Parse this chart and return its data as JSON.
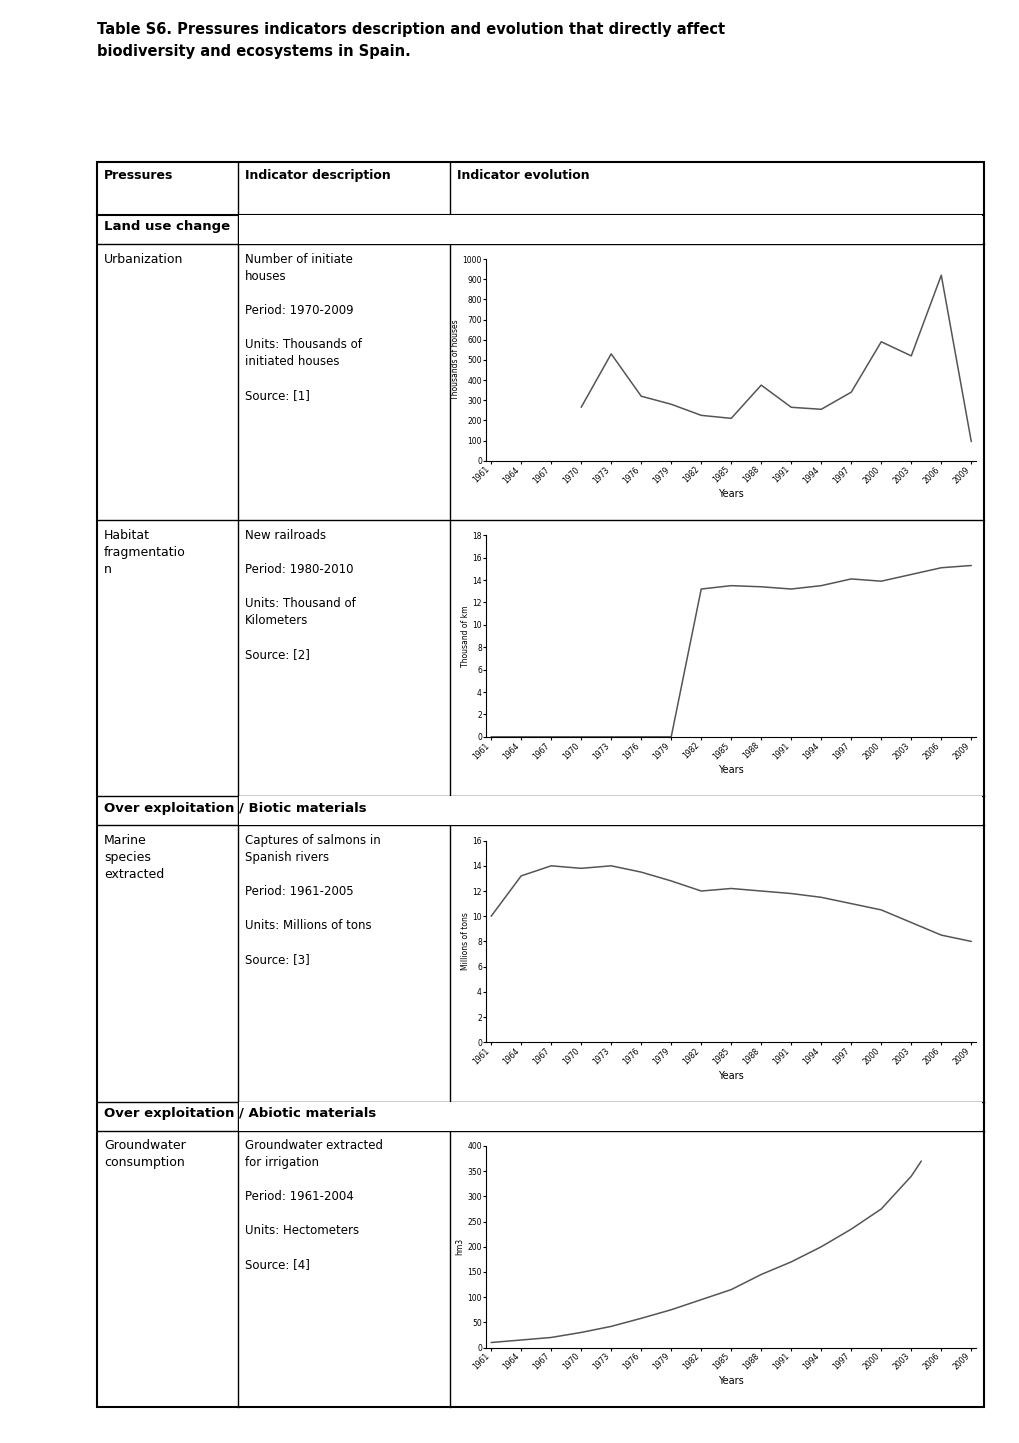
{
  "title_line1": "Table S6. Pressures indicators description and evolution that directly affect",
  "title_line2": "biodiversity and ecosystems in Spain.",
  "col_headers": [
    "Pressures",
    "Indicator description",
    "Indicator evolution"
  ],
  "section_headers": [
    "Land use change",
    "Over exploitation / Biotic materials",
    "Over exploitation / Abiotic materials"
  ],
  "rows": [
    {
      "pressure": "Urbanization",
      "description": "Number of initiate\nhouses\n\nPeriod: 1970-2009\n\nUnits: Thousands of\ninitiated houses\n\nSource: [1]",
      "chart": {
        "ylabel": "Thousands of houses",
        "xlabel": "Years",
        "ylim": [
          0,
          1000
        ],
        "yticks": [
          0,
          100,
          200,
          300,
          400,
          500,
          600,
          700,
          800,
          900,
          1000
        ],
        "xticks": [
          1961,
          1964,
          1967,
          1970,
          1973,
          1976,
          1979,
          1982,
          1985,
          1988,
          1991,
          1994,
          1997,
          2000,
          2003,
          2006,
          2009
        ],
        "plot_years": [
          1970,
          1973,
          1976,
          1979,
          1982,
          1985,
          1988,
          1991,
          1994,
          1997,
          2000,
          2003,
          2006,
          2009
        ],
        "plot_values": [
          265,
          530,
          320,
          280,
          225,
          210,
          375,
          265,
          255,
          340,
          590,
          520,
          920,
          95
        ]
      }
    },
    {
      "pressure": "Habitat\nfragmentatio\nn",
      "description": "New railroads\n\nPeriod: 1980-2010\n\nUnits: Thousand of\nKilometers\n\nSource: [2]",
      "chart": {
        "ylabel": "Thousand of km",
        "xlabel": "Years",
        "ylim": [
          0,
          18
        ],
        "yticks": [
          0,
          2,
          4,
          6,
          8,
          10,
          12,
          14,
          16,
          18
        ],
        "xticks": [
          1961,
          1964,
          1967,
          1970,
          1973,
          1976,
          1979,
          1982,
          1985,
          1988,
          1991,
          1994,
          1997,
          2000,
          2003,
          2006,
          2009
        ],
        "plot_years": [
          1961,
          1964,
          1967,
          1970,
          1973,
          1976,
          1979,
          1982,
          1985,
          1988,
          1991,
          1994,
          1997,
          2000,
          2003,
          2006,
          2009
        ],
        "plot_values": [
          0,
          0,
          0,
          0,
          0,
          0,
          0,
          13.2,
          13.5,
          13.4,
          13.2,
          13.5,
          14.1,
          13.9,
          14.5,
          15.1,
          15.3
        ]
      }
    },
    {
      "pressure": "Marine\nspecies\nextracted",
      "description": "Captures of salmons in\nSpanish rivers\n\nPeriod: 1961-2005\n\nUnits: Millions of tons\n\nSource: [3]",
      "chart": {
        "ylabel": "Millions of tons",
        "xlabel": "Years",
        "ylim": [
          0,
          16
        ],
        "yticks": [
          0,
          2,
          4,
          6,
          8,
          10,
          12,
          14,
          16
        ],
        "xticks": [
          1961,
          1964,
          1967,
          1970,
          1973,
          1976,
          1979,
          1982,
          1985,
          1988,
          1991,
          1994,
          1997,
          2000,
          2003,
          2006,
          2009
        ],
        "plot_years": [
          1961,
          1964,
          1967,
          1970,
          1973,
          1976,
          1979,
          1982,
          1985,
          1988,
          1991,
          1994,
          1997,
          2000,
          2003,
          2006,
          2009
        ],
        "plot_values": [
          10,
          13.2,
          14,
          13.8,
          14,
          13.5,
          12.8,
          12,
          12.2,
          12,
          11.8,
          11.5,
          11,
          10.5,
          9.5,
          8.5,
          8.0
        ]
      }
    },
    {
      "pressure": "Groundwater\nconsumption",
      "description": "Groundwater extracted\nfor irrigation\n\nPeriod: 1961-2004\n\nUnits: Hectometers\n\nSource: [4]",
      "chart": {
        "ylabel": "hm3",
        "xlabel": "Years",
        "ylim": [
          0,
          400
        ],
        "yticks": [
          0,
          50,
          100,
          150,
          200,
          250,
          300,
          350,
          400
        ],
        "xticks": [
          1961,
          1964,
          1967,
          1970,
          1973,
          1976,
          1979,
          1982,
          1985,
          1988,
          1991,
          1994,
          1997,
          2000,
          2003,
          2006,
          2009
        ],
        "plot_years": [
          1961,
          1964,
          1967,
          1970,
          1973,
          1976,
          1979,
          1982,
          1985,
          1988,
          1991,
          1994,
          1997,
          2000,
          2003,
          2004
        ],
        "plot_values": [
          10,
          15,
          20,
          30,
          42,
          58,
          75,
          95,
          115,
          145,
          170,
          200,
          235,
          275,
          340,
          370
        ]
      }
    }
  ],
  "line_color": "#555555",
  "bg_color": "#ffffff"
}
